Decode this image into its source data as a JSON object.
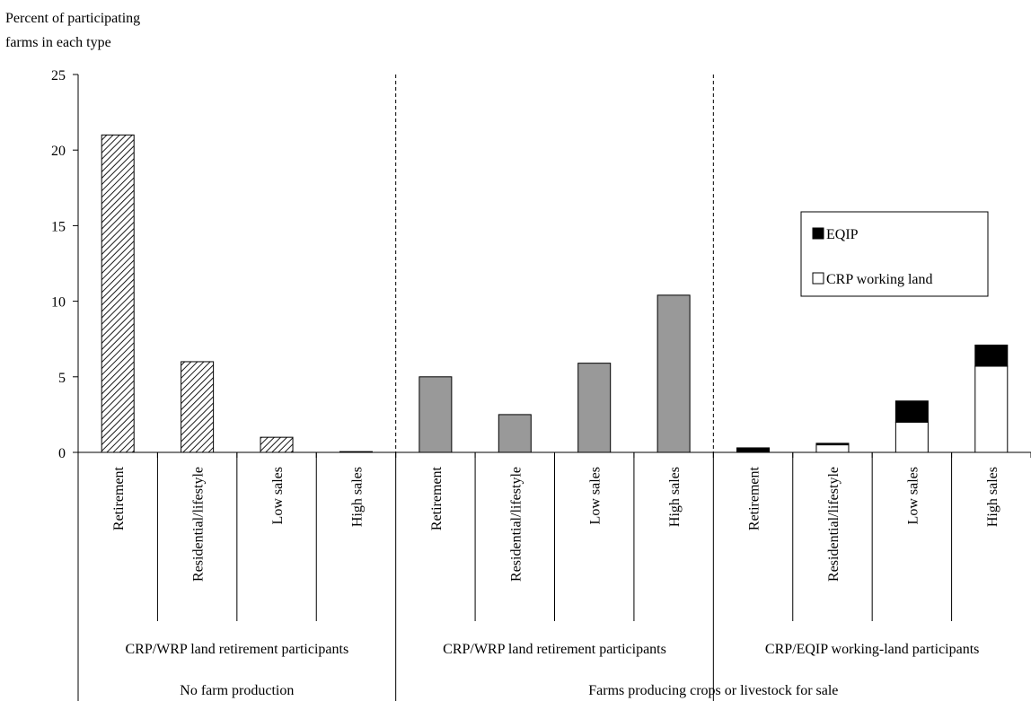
{
  "chart_data": {
    "type": "bar",
    "ylabel": "Percent of participating farms in each type",
    "ylim": [
      0,
      25
    ],
    "yticks": [
      0,
      5,
      10,
      15,
      20,
      25
    ],
    "grid": false,
    "legend_placement": "right",
    "categories": [
      "Retirement",
      "Residential/lifestyle",
      "Low sales",
      "High sales",
      "Retirement",
      "Residential/lifestyle",
      "Low sales",
      "High sales",
      "Retirement",
      "Residential/lifestyle",
      "Low sales",
      "High sales"
    ],
    "group_labels": [
      {
        "label": "CRP/WRP land retirement participants",
        "start": 0,
        "end": 4
      },
      {
        "label": "CRP/WRP land retirement participants",
        "start": 4,
        "end": 8
      },
      {
        "label": "CRP/EQIP working-land participants",
        "start": 8,
        "end": 12
      }
    ],
    "supergroup_labels": [
      {
        "label": "No farm production",
        "start": 0,
        "end": 4
      },
      {
        "label": "Farms producing crops or livestock for sale",
        "start": 4,
        "end": 12
      }
    ],
    "series": [
      {
        "style": "hatched",
        "color": "#ffffff",
        "values": [
          21.0,
          6.0,
          1.0,
          0.05,
          null,
          null,
          null,
          null,
          null,
          null,
          null,
          null
        ]
      },
      {
        "style": "solid-gray",
        "color": "#999999",
        "values": [
          null,
          null,
          null,
          null,
          5.0,
          2.5,
          5.9,
          10.4,
          null,
          null,
          null,
          null
        ]
      },
      {
        "name": "CRP working land",
        "style": "stacked-base",
        "color": "#ffffff",
        "values": [
          null,
          null,
          null,
          null,
          null,
          null,
          null,
          null,
          0.0,
          0.5,
          2.0,
          5.7
        ]
      },
      {
        "name": "EQIP",
        "style": "stacked-top",
        "color": "#000000",
        "values": [
          null,
          null,
          null,
          null,
          null,
          null,
          null,
          null,
          0.3,
          0.1,
          1.4,
          1.4
        ]
      }
    ],
    "legend": [
      "EQIP",
      "CRP working land"
    ]
  }
}
